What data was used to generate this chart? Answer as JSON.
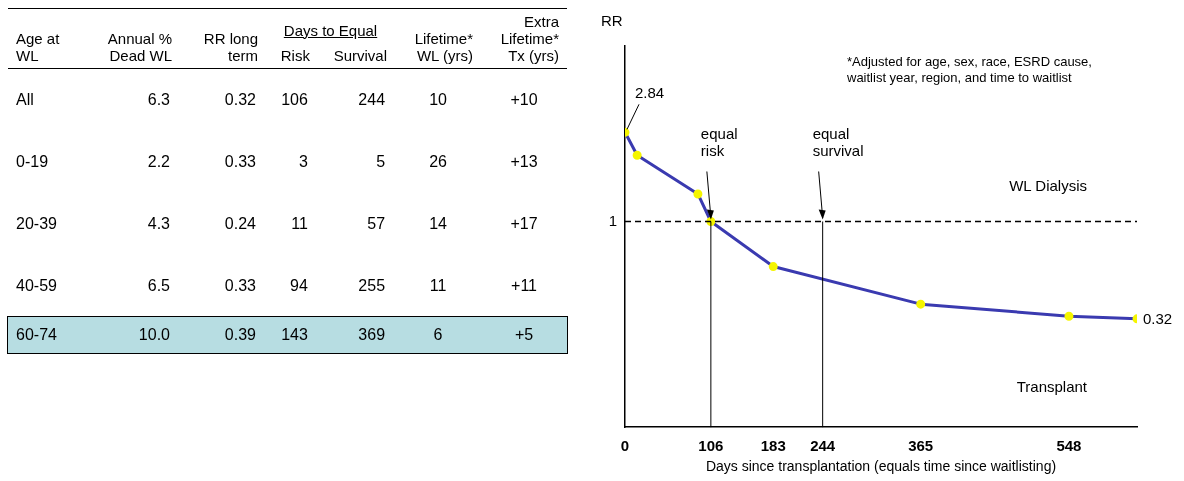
{
  "chart_data": [
    {
      "type": "other",
      "ylabel": "Age at WL",
      "annotations": [
        "Days to Equal"
      ],
      "categories": [
        "Annual % Dead WL",
        "RR long term",
        "Risk",
        "Survival",
        "Lifetime* WL (yrs)",
        "Extra Lifetime* Tx (yrs)"
      ],
      "y_categories": [
        "All",
        "0-19",
        "20-39",
        "40-59",
        "60-74"
      ],
      "cell_labels": [
        [
          "6.3",
          "0.32",
          "106",
          "244",
          "10",
          "+10"
        ],
        [
          "2.2",
          "0.33",
          "3",
          "5",
          "26",
          "+13"
        ],
        [
          "4.3",
          "0.24",
          "11",
          "57",
          "14",
          "+17"
        ],
        [
          "6.5",
          "0.33",
          "94",
          "255",
          "11",
          "+11"
        ],
        [
          "10.0",
          "0.39",
          "143",
          "369",
          "6",
          "+5"
        ]
      ]
    },
    {
      "type": "line",
      "xlabel": "Days since transplantation (equals time since waitlisting)",
      "ylabel": "RR",
      "log": "y",
      "x": [
        0,
        15,
        90,
        106,
        183,
        365,
        548,
        632
      ],
      "values": [
        2.84,
        2.17,
        1.38,
        1,
        0.59,
        0.38,
        0.33,
        0.32
      ],
      "value_labels": [
        "2.84",
        null,
        null,
        null,
        null,
        null,
        null,
        "0.32"
      ],
      "color": "#3a3ab0",
      "marker": "circle",
      "grid": false,
      "legend": false,
      "xlim": [
        0,
        632
      ],
      "xticks": [
        0,
        106,
        183,
        244,
        365,
        548
      ],
      "ylim": [
        0.09,
        7.8
      ],
      "ref_lines": [
        {
          "axis": "y",
          "value": 1,
          "label": "1",
          "line_style": "dashed",
          "color": "#000000"
        },
        {
          "axis": "x",
          "value": 106,
          "label": "equal risk",
          "color": "#000000"
        },
        {
          "axis": "x",
          "value": 244,
          "label": "equal survival",
          "color": "#000000"
        }
      ],
      "annotations": [
        "*Adjusted for age, sex, race, ESRD cause, waitlist year, region, and time to waitlist",
        "WL Dialysis",
        "Transplant"
      ]
    }
  ]
}
